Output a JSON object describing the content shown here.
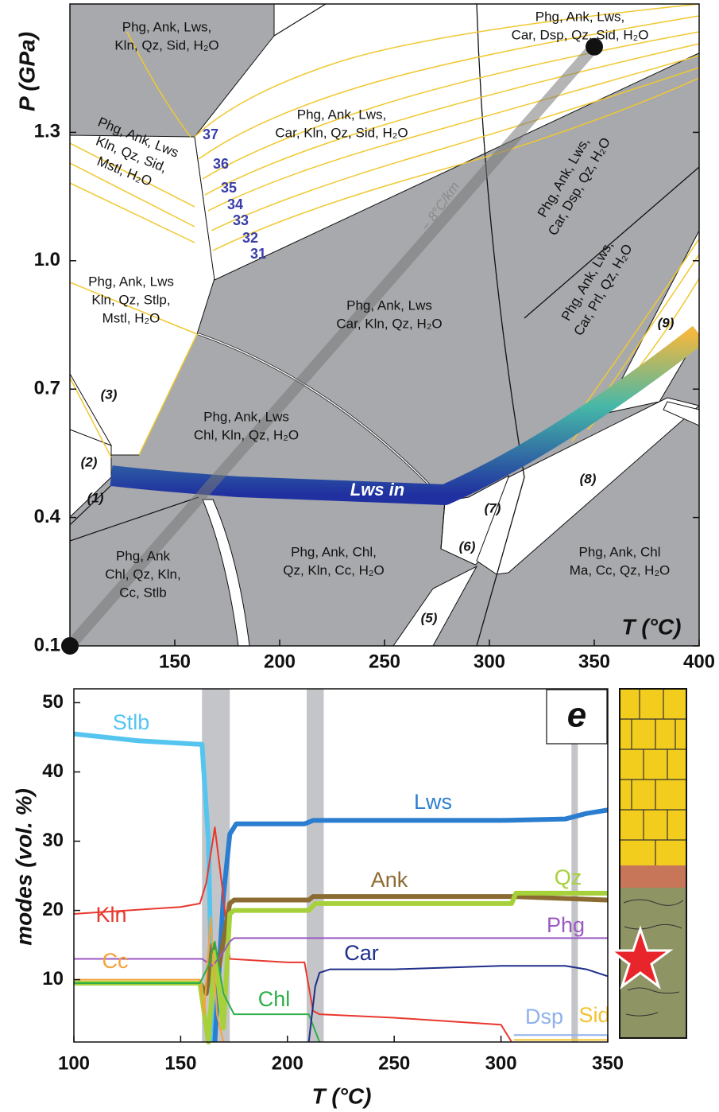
{
  "chart_data": [
    {
      "type": "phase-diagram",
      "xlabel": "T (°C)",
      "ylabel": "P (GPa)",
      "xlim": [
        100,
        400
      ],
      "xticks": [
        150,
        200,
        250,
        300,
        350,
        400
      ],
      "ylim": [
        0.1,
        1.6
      ],
      "yticks": [
        0.1,
        0.4,
        0.7,
        {
          "value": 1.0,
          "label": "1.0"
        },
        1.3
      ],
      "fields": [
        [
          "Phg, Ank, Lws,",
          "Kln, Qz, Sid, H₂O"
        ],
        [
          "Phg, Ank, Lws,",
          "Car, Dsp, Qz, Sid, H₂O"
        ],
        [
          "Phg, Ank, Lws,",
          "Car, Kln, Qz, Sid, H₂O"
        ],
        [
          "Phg, Ank, Lws",
          "Kln, Qz, Sid,",
          "Mstl, H₂O"
        ],
        [
          "Phg, Ank, Lws,",
          "Car, Dsp, Qz, H₂O"
        ],
        [
          "Phg, Ank, Lws",
          "Kln, Qz, Stlp,",
          "Mstl, H₂O"
        ],
        [
          "Phg, Ank, Lws",
          "Car, Kln, Qz, H₂O"
        ],
        [
          "Phg, Ank, Lws,",
          "Car, Prl, Qz, H₂O"
        ],
        [
          "Phg, Ank, Lws",
          "Chl, Kln, Qz, H₂O"
        ],
        [
          "Phg, Ank, Chl,",
          "Qz, Kln, Cc, H₂O"
        ],
        [
          "Phg, Ank",
          "Chl, Qz, Kln,",
          "Cc, Stlb"
        ],
        [
          "Phg, Ank, Chl",
          "Ma, Cc, Qz, H₂O"
        ]
      ],
      "field_numbers": [
        "(1)",
        "(2)",
        "(3)",
        "(5)",
        "(6)",
        "(7)",
        "(8)",
        "(9)"
      ],
      "isopleth_labels": [
        37,
        36,
        35,
        34,
        33,
        32,
        31
      ],
      "geotherm_label": "~ 8°C/km",
      "reaction_label": "Lws in",
      "geotherm": {
        "x": [
          100,
          350
        ],
        "y": [
          0.1,
          1.5
        ]
      }
    },
    {
      "type": "line",
      "panel_label": "e",
      "xlabel": "T (°C)",
      "ylabel": "modes (vol. %)",
      "xlim": [
        100,
        350
      ],
      "xticks": [
        100,
        150,
        200,
        250,
        300,
        350
      ],
      "ylim": [
        1,
        52
      ],
      "yticks": [
        10,
        20,
        30,
        40,
        50
      ],
      "shaded_ranges": [
        [
          160,
          173
        ],
        [
          209,
          217
        ],
        [
          333,
          336
        ]
      ],
      "series": [
        {
          "name": "Stlb",
          "color": "#55c5f0",
          "x": [
            100,
            130,
            158,
            160,
            163,
            165
          ],
          "values": [
            45.5,
            44.5,
            44,
            44,
            30,
            1
          ]
        },
        {
          "name": "Lws",
          "color": "#2b7dcf",
          "x": [
            166,
            170,
            173,
            176,
            208,
            212,
            300,
            330,
            340,
            350
          ],
          "values": [
            1,
            22,
            31,
            32.5,
            32.5,
            33,
            33,
            33.2,
            34,
            34.5
          ]
        },
        {
          "name": "Kln",
          "color": "#e8382e",
          "x": [
            100,
            150,
            159,
            162,
            166,
            170,
            173,
            200,
            208,
            212,
            215,
            250,
            300,
            305
          ],
          "values": [
            19.5,
            20.5,
            21,
            24,
            32,
            22,
            13,
            12.5,
            12.5,
            5.5,
            5,
            4.5,
            3.5,
            1
          ]
        },
        {
          "name": "Ank",
          "color": "#8c6b32",
          "x": [
            100,
            159,
            162,
            165,
            168,
            173,
            175,
            210,
            212,
            300,
            306,
            350
          ],
          "values": [
            9.5,
            9.5,
            8,
            15,
            12,
            21,
            21.5,
            21.5,
            22,
            22,
            22,
            21.5
          ]
        },
        {
          "name": "Qz",
          "color": "#a6d13a",
          "x": [
            100,
            159,
            163,
            166,
            170,
            173,
            175,
            210,
            213,
            305,
            307,
            350
          ],
          "values": [
            9.5,
            9.5,
            1,
            14,
            3,
            19.5,
            20,
            20,
            21,
            21,
            22.5,
            22.5
          ]
        },
        {
          "name": "Phg",
          "color": "#9b59c4",
          "x": [
            100,
            160,
            165,
            170,
            173,
            175,
            350
          ],
          "values": [
            13,
            13,
            12,
            14,
            15.5,
            16,
            16
          ]
        },
        {
          "name": "Cc",
          "color": "#f5a23a",
          "x": [
            100,
            159,
            161,
            164,
            167,
            170
          ],
          "values": [
            10,
            10,
            5,
            19,
            5,
            1
          ]
        },
        {
          "name": "Chl",
          "color": "#2fae48",
          "x": [
            100,
            159,
            163,
            166,
            170,
            175,
            210,
            215
          ],
          "values": [
            9.5,
            9.5,
            12,
            15.5,
            8,
            5,
            5,
            1
          ]
        },
        {
          "name": "Car",
          "color": "#1f2e8a",
          "x": [
            210,
            213,
            215,
            220,
            250,
            300,
            330,
            340,
            350
          ],
          "values": [
            1,
            9,
            11,
            11.5,
            11.5,
            12,
            12,
            11.5,
            10.5
          ]
        },
        {
          "name": "Dsp",
          "color": "#8fb0ec",
          "x": [
            306,
            350
          ],
          "values": [
            2,
            2
          ]
        },
        {
          "name": "Sid",
          "color": "#f2c230",
          "x": [
            306,
            350
          ],
          "values": [
            1.3,
            1.3
          ]
        }
      ]
    }
  ]
}
